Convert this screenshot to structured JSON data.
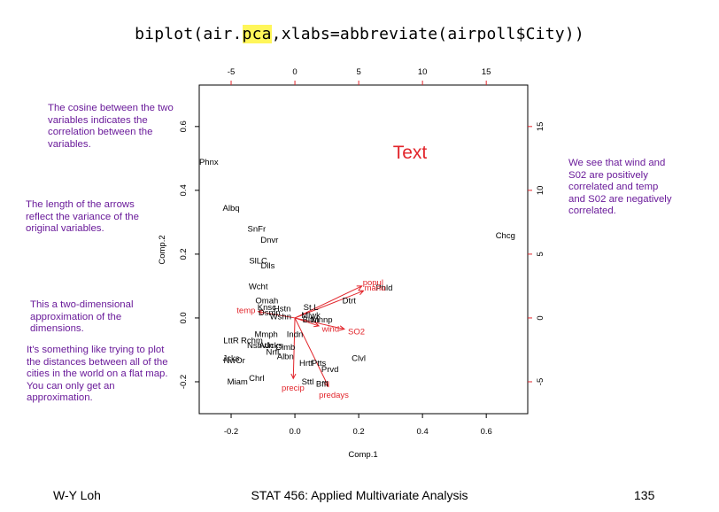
{
  "title": {
    "pre": "biplot(air.",
    "highlight": "pca",
    "post": ",xlabs=abbreviate(airpoll$City))"
  },
  "notes": {
    "cosine": "The cosine between the two variables indicates the correlation between the variables.",
    "length": "The length of the arrows reflect the variance of the original variables.",
    "approx": "This a two-dimensional approximation of the dimensions.",
    "distances": "It's something like trying to plot the distances between all of the cities in the world on a flat map. You can only get an approximation.",
    "wind": "We see that wind and S02 are positively correlated and temp and S02 are negatively correlated."
  },
  "colors": {
    "note": "#6a1b9a",
    "variables": "#e2252b",
    "highlight": "#fff65a"
  },
  "chart_data": {
    "type": "scatter",
    "annotation": "Text",
    "xlabel": "Comp.1",
    "ylabel": "Comp.2",
    "xlim": [
      -0.3,
      0.73
    ],
    "ylim": [
      -0.3,
      0.73
    ],
    "x_ticks": [
      "-0.2",
      "0.0",
      "0.2",
      "0.4",
      "0.6"
    ],
    "y_ticks": [
      "-0.2",
      "0.0",
      "0.2",
      "0.4",
      "0.6"
    ],
    "top_ticks": [
      "-5",
      "0",
      "5",
      "10",
      "15"
    ],
    "right_ticks": [
      "-5",
      "0",
      "5",
      "10",
      "15"
    ],
    "secondary_scale": 25,
    "cities": [
      {
        "label": "Phnx",
        "x": -0.27,
        "y": 0.49
      },
      {
        "label": "Albq",
        "x": -0.2,
        "y": 0.345
      },
      {
        "label": "SnFr",
        "x": -0.12,
        "y": 0.28
      },
      {
        "label": "Dnvr",
        "x": -0.08,
        "y": 0.245
      },
      {
        "label": "SlLC",
        "x": -0.115,
        "y": 0.18
      },
      {
        "label": "Dlls",
        "x": -0.085,
        "y": 0.165
      },
      {
        "label": "Wcht",
        "x": -0.115,
        "y": 0.1
      },
      {
        "label": "Omah",
        "x": -0.088,
        "y": 0.055
      },
      {
        "label": "Knsc",
        "x": -0.088,
        "y": 0.035
      },
      {
        "label": "Hstn",
        "x": -0.04,
        "y": 0.03
      },
      {
        "label": "Dsmn",
        "x": -0.08,
        "y": 0.018
      },
      {
        "label": "Wshn",
        "x": -0.045,
        "y": 0.005
      },
      {
        "label": "St.L",
        "x": 0.05,
        "y": 0.035
      },
      {
        "label": "Mlwk",
        "x": 0.05,
        "y": 0.01
      },
      {
        "label": "Bltm",
        "x": 0.05,
        "y": -0.005
      },
      {
        "label": "Mnnp",
        "x": 0.085,
        "y": -0.005
      },
      {
        "label": "Dtrt",
        "x": 0.17,
        "y": 0.055
      },
      {
        "label": "Phld",
        "x": 0.28,
        "y": 0.095
      },
      {
        "label": "Chcg",
        "x": 0.66,
        "y": 0.26
      },
      {
        "label": "Mmph",
        "x": -0.09,
        "y": -0.05
      },
      {
        "label": "Indn",
        "x": 0.0,
        "y": -0.05
      },
      {
        "label": "LttR",
        "x": -0.2,
        "y": -0.07
      },
      {
        "label": "Rchm",
        "x": -0.135,
        "y": -0.07
      },
      {
        "label": "Nshv",
        "x": -0.12,
        "y": -0.085
      },
      {
        "label": "Atln",
        "x": -0.09,
        "y": -0.085
      },
      {
        "label": "Jcks",
        "x": -0.065,
        "y": -0.085
      },
      {
        "label": "Clmb",
        "x": -0.03,
        "y": -0.09
      },
      {
        "label": "Nrfl",
        "x": -0.07,
        "y": -0.105
      },
      {
        "label": "Albn",
        "x": -0.03,
        "y": -0.12
      },
      {
        "label": "Jcks",
        "x": -0.2,
        "y": -0.125
      },
      {
        "label": "NwOr",
        "x": -0.19,
        "y": -0.132
      },
      {
        "label": "Hrtf",
        "x": 0.035,
        "y": -0.14
      },
      {
        "label": "Ptts",
        "x": 0.075,
        "y": -0.14
      },
      {
        "label": "Prvd",
        "x": 0.11,
        "y": -0.16
      },
      {
        "label": "Clvl",
        "x": 0.2,
        "y": -0.125
      },
      {
        "label": "Chrl",
        "x": -0.12,
        "y": -0.188
      },
      {
        "label": "Miam",
        "x": -0.18,
        "y": -0.198
      },
      {
        "label": "Sttl",
        "x": 0.04,
        "y": -0.198
      },
      {
        "label": "Bffl",
        "x": 0.085,
        "y": -0.205
      }
    ],
    "variables": [
      {
        "name": "SO2",
        "x": 0.155,
        "y": -0.035
      },
      {
        "name": "temp",
        "x": -0.115,
        "y": 0.02
      },
      {
        "name": "manu",
        "x": 0.215,
        "y": 0.085
      },
      {
        "name": "popul",
        "x": 0.21,
        "y": 0.1
      },
      {
        "name": "wind",
        "x": 0.075,
        "y": -0.025
      },
      {
        "name": "precip",
        "x": -0.005,
        "y": -0.19
      },
      {
        "name": "predays",
        "x": 0.105,
        "y": -0.215
      }
    ]
  },
  "footer": {
    "left": "W-Y Loh",
    "center": "STAT 456: Applied Multivariate Analysis",
    "right": "135"
  }
}
